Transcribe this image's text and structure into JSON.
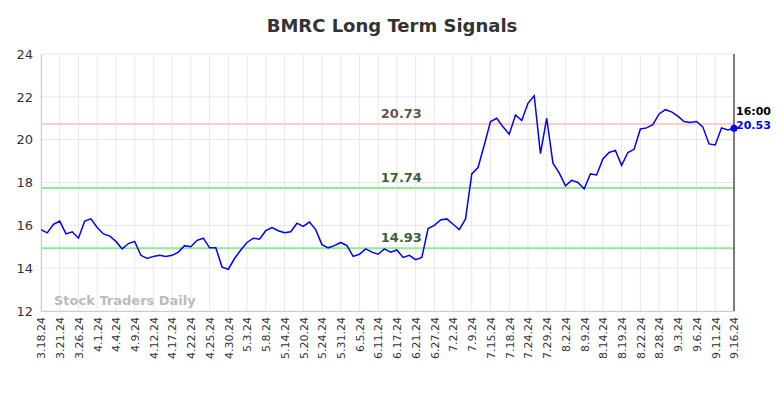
{
  "chart_data": {
    "type": "line",
    "title": "BMRC Long Term Signals",
    "watermark": "Stock Traders Daily",
    "time_label": "16:00",
    "categories": [
      "3.18.24",
      null,
      null,
      "3.21.24",
      null,
      null,
      "3.26.24",
      null,
      null,
      "4.1.24",
      null,
      null,
      "4.4.24",
      null,
      null,
      "4.9.24",
      null,
      null,
      "4.12.24",
      null,
      null,
      "4.17.24",
      null,
      null,
      "4.22.24",
      null,
      null,
      "4.25.24",
      null,
      null,
      "4.30.24",
      null,
      null,
      "5.3.24",
      null,
      null,
      "5.8.24",
      null,
      null,
      "5.14.24",
      null,
      null,
      "5.20.24",
      null,
      null,
      "5.24.24",
      null,
      null,
      "5.31.24",
      null,
      null,
      "6.5.24",
      null,
      null,
      "6.11.24",
      null,
      null,
      "6.17.24",
      null,
      null,
      "6.21.24",
      null,
      null,
      "6.27.24",
      null,
      null,
      "7.2.24",
      null,
      null,
      "7.9.24",
      null,
      null,
      "7.15.24",
      null,
      null,
      "7.18.24",
      null,
      null,
      "7.24.24",
      null,
      null,
      "7.29.24",
      null,
      null,
      "8.2.24",
      null,
      null,
      "8.9.24",
      null,
      null,
      "8.14.24",
      null,
      null,
      "8.19.24",
      null,
      null,
      "8.22.24",
      null,
      null,
      "8.28.24",
      null,
      null,
      "9.3.24",
      null,
      null,
      "9.6.24",
      null,
      null,
      "9.11.24",
      null,
      null,
      "9.16.24"
    ],
    "series": [
      {
        "name": "BMRC",
        "color": "#0000ff",
        "values": [
          15.8,
          15.65,
          16.05,
          16.2,
          15.6,
          15.7,
          15.4,
          16.2,
          16.3,
          15.9,
          15.6,
          15.5,
          15.25,
          14.9,
          15.15,
          15.25,
          14.6,
          14.45,
          14.55,
          14.6,
          14.55,
          14.6,
          14.75,
          15.05,
          15.0,
          15.3,
          15.4,
          14.95,
          14.95,
          14.05,
          13.95,
          14.45,
          14.85,
          15.2,
          15.4,
          15.35,
          15.75,
          15.9,
          15.75,
          15.65,
          15.7,
          16.1,
          15.95,
          16.15,
          15.8,
          15.1,
          14.95,
          15.05,
          15.2,
          15.05,
          14.55,
          14.65,
          14.9,
          14.75,
          14.65,
          14.9,
          14.75,
          14.85,
          14.5,
          14.6,
          14.4,
          14.5,
          15.85,
          16.0,
          16.25,
          16.3,
          16.05,
          15.8,
          16.3,
          18.4,
          18.7,
          19.75,
          20.85,
          21.0,
          20.6,
          20.25,
          21.15,
          20.9,
          21.7,
          22.05,
          19.35,
          21.0,
          18.9,
          18.45,
          17.85,
          18.1,
          18.0,
          17.7,
          18.4,
          18.35,
          19.1,
          19.4,
          19.5,
          18.8,
          19.4,
          19.55,
          20.5,
          20.55,
          20.7,
          21.2,
          21.4,
          21.3,
          21.1,
          20.85,
          20.8,
          20.85,
          20.6,
          19.8,
          19.75,
          20.55,
          20.45,
          20.53
        ]
      }
    ],
    "signals": [
      {
        "value": 20.73,
        "color": "#ffcccc"
      },
      {
        "value": 17.74,
        "color": "#90ee90"
      },
      {
        "value": 14.93,
        "color": "#90ee90"
      }
    ],
    "ylim": [
      12,
      24
    ],
    "yticks": [
      12,
      14,
      16,
      18,
      20,
      22,
      24
    ],
    "grid": true
  }
}
